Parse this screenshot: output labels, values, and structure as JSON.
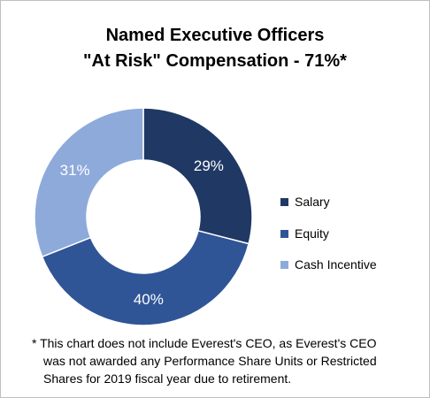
{
  "chart_data": {
    "type": "pie",
    "title_lines": [
      "Named Executive Officers",
      "\"At Risk\" Compensation - 71%*"
    ],
    "categories": [
      "Salary",
      "Equity",
      "Cash Incentive"
    ],
    "values": [
      29,
      40,
      31
    ],
    "data_labels": [
      "29%",
      "40%",
      "31%"
    ],
    "colors": [
      "#1f3864",
      "#2f5597",
      "#8eaadb"
    ],
    "legend_position": "right",
    "donut": true
  },
  "footnote": {
    "lines": [
      "* This chart does not include Everest's CEO, as Everest's CEO",
      "was not awarded any Performance Share Units or Restricted",
      "Shares for 2019 fiscal year due to retirement."
    ]
  }
}
